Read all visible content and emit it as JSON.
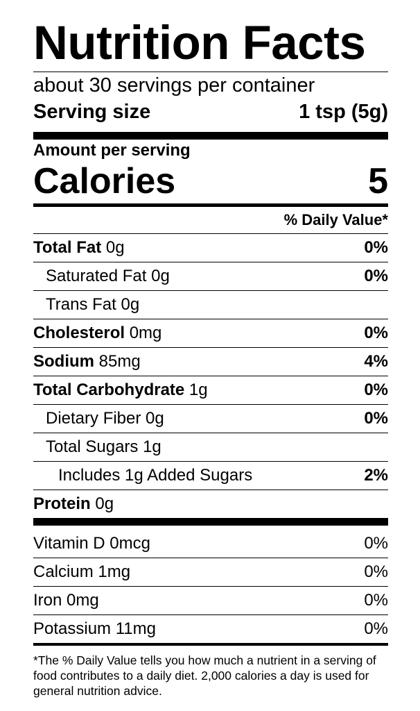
{
  "title": "Nutrition Facts",
  "servings": "about 30 servings per container",
  "serving_size": {
    "label": "Serving size",
    "value": "1 tsp (5g)"
  },
  "amount_per_serving": "Amount per serving",
  "calories": {
    "label": "Calories",
    "value": "5"
  },
  "daily_value_header": "% Daily Value*",
  "nutrients": [
    {
      "name": "Total Fat",
      "amount": "0g",
      "dv": "0%"
    },
    {
      "name": "Saturated Fat",
      "amount": "0g",
      "dv": "0%"
    },
    {
      "name": "Trans Fat",
      "amount": "0g"
    },
    {
      "name": "Cholesterol",
      "amount": "0mg",
      "dv": "0%"
    },
    {
      "name": "Sodium",
      "amount": "85mg",
      "dv": "4%"
    },
    {
      "name": "Total Carbohydrate",
      "amount": "1g",
      "dv": "0%"
    },
    {
      "name": "Dietary Fiber",
      "amount": "0g",
      "dv": "0%"
    },
    {
      "name": "Total Sugars",
      "amount": "1g"
    },
    {
      "name": "Includes 1g Added Sugars",
      "dv": "2%"
    },
    {
      "name": "Protein",
      "amount": "0g"
    }
  ],
  "vitamins": [
    {
      "name": "Vitamin D",
      "amount": "0mcg",
      "dv": "0%"
    },
    {
      "name": "Calcium",
      "amount": "1mg",
      "dv": "0%"
    },
    {
      "name": "Iron",
      "amount": "0mg",
      "dv": "0%"
    },
    {
      "name": "Potassium",
      "amount": "11mg",
      "dv": "0%"
    }
  ],
  "footnote": "*The % Daily Value tells you how much a nutrient in a serving of food contributes to a daily diet. 2,000 calories a day is used for general nutrition advice."
}
